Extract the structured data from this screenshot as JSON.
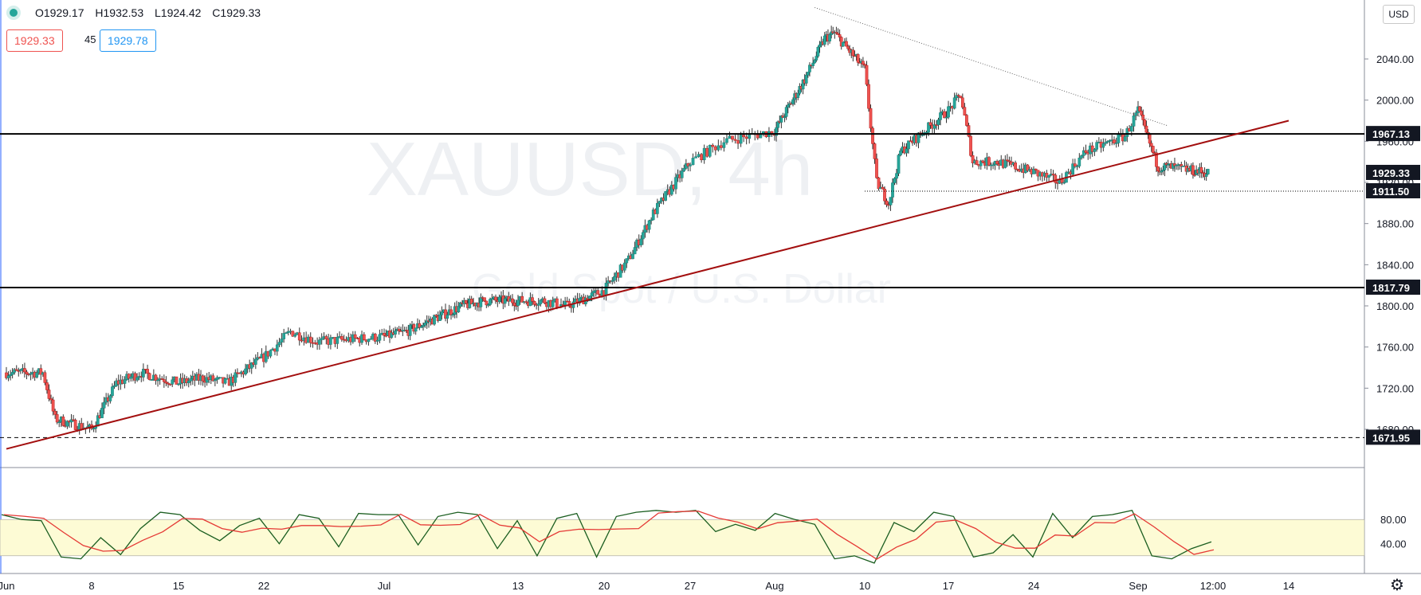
{
  "header": {
    "open": "O1929.17",
    "high": "H1932.53",
    "low": "L1924.42",
    "close": "C1929.33",
    "bid": "1929.33",
    "spread": "45",
    "ask": "1929.78"
  },
  "currency": "USD",
  "watermark": {
    "symbol": "XAUUSD, 4h",
    "name": "Gold Spot / U.S. Dollar"
  },
  "colors": {
    "up": "#26a69a",
    "down": "#ef5350",
    "trendline": "#a30f0f",
    "stoch_band": "#fdfbd5",
    "stoch_k": "#1b5e20",
    "stoch_d": "#e53935"
  },
  "chart_data": {
    "type": "candlestick",
    "instrument": "XAUUSD",
    "timeframe": "4h",
    "ylim": [
      1640,
      2100
    ],
    "y_ticks": [
      1680,
      1720,
      1760,
      1800,
      1840,
      1880,
      1920,
      1960,
      2000,
      2040
    ],
    "y_tick_labels": [
      "1680.00",
      "1720.00",
      "1760.00",
      "1800.00",
      "1840.00",
      "1880.00",
      "1920.00",
      "1960.00",
      "2000.00",
      "2040.00"
    ],
    "x_tick_labels": [
      "Jun",
      "8",
      "15",
      "22",
      "Jul",
      "13",
      "20",
      "27",
      "Aug",
      "10",
      "17",
      "24",
      "Sep",
      "12:00",
      "14"
    ],
    "close_path": [
      [
        "Jun",
        1735
      ],
      [
        "Jun 4",
        1735
      ],
      [
        "Jun 5",
        1690
      ],
      [
        "Jun 8",
        1680
      ],
      [
        "Jun 10",
        1725
      ],
      [
        "Jun 12",
        1735
      ],
      [
        "Jun 15",
        1725
      ],
      [
        "Jun 17",
        1730
      ],
      [
        "Jun 19",
        1725
      ],
      [
        "Jun 22",
        1750
      ],
      [
        "Jun 24",
        1775
      ],
      [
        "Jun 26",
        1765
      ],
      [
        "Jul",
        1770
      ],
      [
        "Jul 3",
        1775
      ],
      [
        "Jul 6",
        1790
      ],
      [
        "Jul 8",
        1800
      ],
      [
        "Jul 10",
        1805
      ],
      [
        "Jul 13",
        1805
      ],
      [
        "Jul 15",
        1805
      ],
      [
        "Jul 17",
        1800
      ],
      [
        "Jul 20",
        1815
      ],
      [
        "Jul 22",
        1845
      ],
      [
        "Jul 24",
        1890
      ],
      [
        "Jul 27",
        1940
      ],
      [
        "Jul 29",
        1960
      ],
      [
        "Aug",
        1970
      ],
      [
        "Aug 4",
        2020
      ],
      [
        "Aug 6",
        2060
      ],
      [
        "Aug 7",
        2065
      ],
      [
        "Aug 10",
        2030
      ],
      [
        "Aug 11",
        1920
      ],
      [
        "Aug 12",
        1900
      ],
      [
        "Aug 13",
        1950
      ],
      [
        "Aug 17",
        1990
      ],
      [
        "Aug 18",
        2005
      ],
      [
        "Aug 19",
        1940
      ],
      [
        "Aug 21",
        1940
      ],
      [
        "Aug 24",
        1930
      ],
      [
        "Aug 26",
        1920
      ],
      [
        "Aug 28",
        1950
      ],
      [
        "Aug 31",
        1965
      ],
      [
        "Sep 1",
        1990
      ],
      [
        "Sep 3",
        1935
      ],
      [
        "Sep 4",
        1935
      ],
      [
        "Sep 8",
        1929.33
      ]
    ],
    "horizontal_levels": [
      {
        "price": 1967.13,
        "label": "1967.13",
        "style": "solid"
      },
      {
        "price": 1817.79,
        "label": "1817.79",
        "style": "solid"
      },
      {
        "price": 1911.5,
        "label": "1911.50",
        "style": "dotted"
      },
      {
        "price": 1671.95,
        "label": "1671.95",
        "style": "dashed"
      }
    ],
    "last_price": {
      "price": 1929.33,
      "label": "1929.33"
    },
    "trendlines": [
      {
        "name": "support",
        "from": [
          "Jun",
          1661
        ],
        "to": [
          "Sep 14+",
          1980
        ]
      },
      {
        "name": "resistance",
        "from": [
          "Aug 5",
          2090
        ],
        "to": [
          "Sep 4",
          1975
        ]
      }
    ],
    "stochastic": {
      "ylim": [
        0,
        110
      ],
      "band": [
        20,
        80
      ],
      "y_tick_labels": [
        "80.00",
        "40.00"
      ],
      "k_values": [
        88,
        80,
        78,
        18,
        15,
        50,
        22,
        65,
        92,
        88,
        62,
        45,
        70,
        82,
        40,
        88,
        82,
        35,
        90,
        88,
        88,
        38,
        85,
        92,
        88,
        32,
        78,
        20,
        82,
        90,
        18,
        85,
        92,
        95,
        92,
        95,
        60,
        72,
        62,
        90,
        80,
        72,
        15,
        20,
        8,
        75,
        60,
        92,
        85,
        18,
        25,
        55,
        18,
        90,
        50,
        85,
        88,
        95,
        20,
        15,
        32,
        43
      ]
    }
  }
}
